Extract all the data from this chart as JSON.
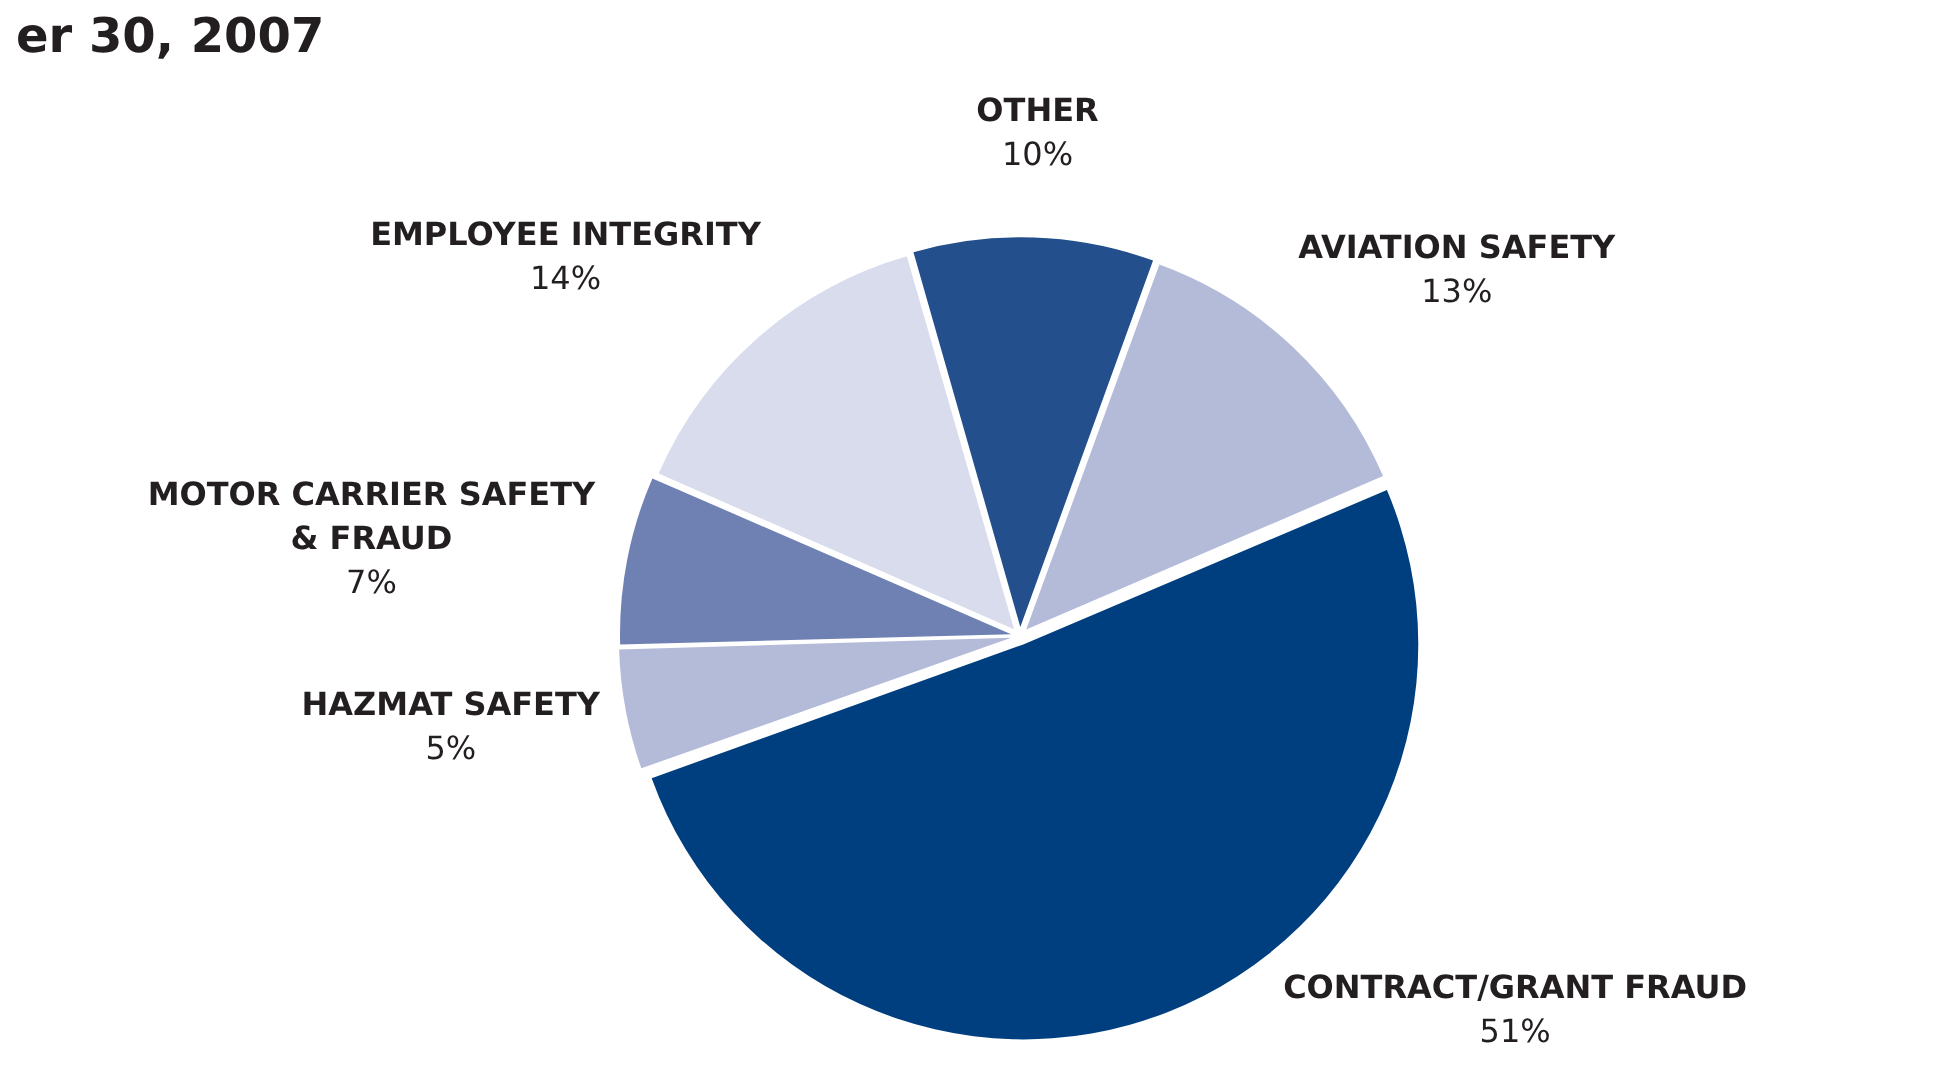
{
  "chart_data": {
    "type": "pie",
    "title": "er 30, 2007",
    "categories": [
      "OTHER",
      "AVIATION SAFETY",
      "CONTRACT/GRANT FRAUD",
      "HAZMAT SAFETY",
      "MOTOR CARRIER SAFETY & FRAUD",
      "EMPLOYEE INTEGRITY"
    ],
    "values": [
      10,
      13,
      51,
      5,
      7,
      14
    ],
    "colors": [
      "#234f8c",
      "#b3bbd9",
      "#003f7f",
      "#b3bbd9",
      "#6f80b3",
      "#d9dced"
    ],
    "value_labels": [
      "10%",
      "13%",
      "51%",
      "5%",
      "7%",
      "14%"
    ],
    "legend": false
  }
}
